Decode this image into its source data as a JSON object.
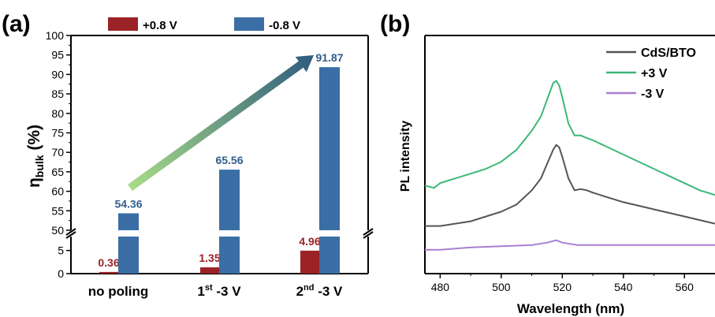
{
  "colors": {
    "pos": "#9b2226",
    "neg": "#3a6ea5",
    "neg_label": "#2f5d8a",
    "pos_label": "#9b2226",
    "arrow_start": "#a8dc86",
    "arrow_end": "#2f5b7d",
    "cds": "#555555",
    "plus3": "#3cb878",
    "minus3": "#a77fd1"
  },
  "panel_a": {
    "letter": "(a)",
    "legend": [
      "+0.8 V",
      "-0.8 V"
    ],
    "ylabel_main": "η",
    "ylabel_sub": "bulk",
    "ylabel_unit": " (%)",
    "categories": [
      {
        "main": "no poling",
        "sup": "",
        "rest": ""
      },
      {
        "main": "1",
        "sup": "st",
        "rest": " -3 V"
      },
      {
        "main": "2",
        "sup": "nd",
        "rest": " -3 V"
      }
    ]
  },
  "panel_b": {
    "letter": "(b)",
    "xlabel": "Wavelength (nm)",
    "ylabel": "PL intensity",
    "legend": [
      "CdS/BTO",
      "+3 V",
      "-3 V"
    ]
  },
  "chart_data": [
    {
      "type": "bar",
      "title": "",
      "categories": [
        "no poling",
        "1st -3 V",
        "2nd -3 V"
      ],
      "series": [
        {
          "name": "+0.8 V",
          "values": [
            0.36,
            1.35,
            4.96
          ]
        },
        {
          "name": "-0.8 V",
          "values": [
            54.36,
            65.56,
            91.87
          ]
        }
      ],
      "ylabel": "ηbulk (%)",
      "ylim_lower": [
        0,
        8
      ],
      "ylim_upper": [
        50,
        100
      ],
      "yticks": [
        0,
        5,
        50,
        55,
        60,
        65,
        70,
        75,
        80,
        85,
        90,
        95,
        100
      ],
      "axis_break": true,
      "data_labels": [
        "0.36",
        "1.35",
        "4.96",
        "54.36",
        "65.56",
        "91.87"
      ]
    },
    {
      "type": "line",
      "title": "",
      "xlabel": "Wavelength (nm)",
      "ylabel": "PL intensity",
      "xlim": [
        475,
        570
      ],
      "ylim": [
        0,
        1
      ],
      "xticks": [
        480,
        500,
        520,
        540,
        560
      ],
      "series": [
        {
          "name": "CdS/BTO",
          "x": [
            475,
            480,
            485,
            490,
            495,
            500,
            505,
            510,
            513,
            515,
            517,
            518,
            519,
            520,
            522,
            524,
            526,
            528,
            530,
            535,
            540,
            545,
            550,
            555,
            560,
            565,
            570
          ],
          "y": [
            0.2,
            0.2,
            0.21,
            0.22,
            0.24,
            0.26,
            0.29,
            0.35,
            0.4,
            0.46,
            0.52,
            0.54,
            0.53,
            0.49,
            0.4,
            0.35,
            0.355,
            0.35,
            0.34,
            0.32,
            0.3,
            0.285,
            0.27,
            0.255,
            0.24,
            0.225,
            0.21
          ]
        },
        {
          "name": "+3 V",
          "x": [
            475,
            478,
            480,
            485,
            490,
            495,
            500,
            505,
            510,
            513,
            515,
            517,
            518,
            519,
            520,
            522,
            524,
            526,
            528,
            530,
            535,
            540,
            545,
            550,
            555,
            560,
            565,
            570
          ],
          "y": [
            0.37,
            0.36,
            0.38,
            0.4,
            0.42,
            0.44,
            0.47,
            0.52,
            0.6,
            0.66,
            0.73,
            0.8,
            0.81,
            0.79,
            0.74,
            0.63,
            0.58,
            0.58,
            0.57,
            0.56,
            0.53,
            0.5,
            0.47,
            0.44,
            0.41,
            0.38,
            0.35,
            0.33
          ]
        },
        {
          "name": "-3 V",
          "x": [
            475,
            480,
            490,
            500,
            510,
            515,
            518,
            520,
            525,
            530,
            540,
            550,
            560,
            570
          ],
          "y": [
            0.1,
            0.1,
            0.11,
            0.115,
            0.12,
            0.13,
            0.14,
            0.13,
            0.12,
            0.12,
            0.12,
            0.12,
            0.12,
            0.12
          ]
        }
      ]
    }
  ]
}
